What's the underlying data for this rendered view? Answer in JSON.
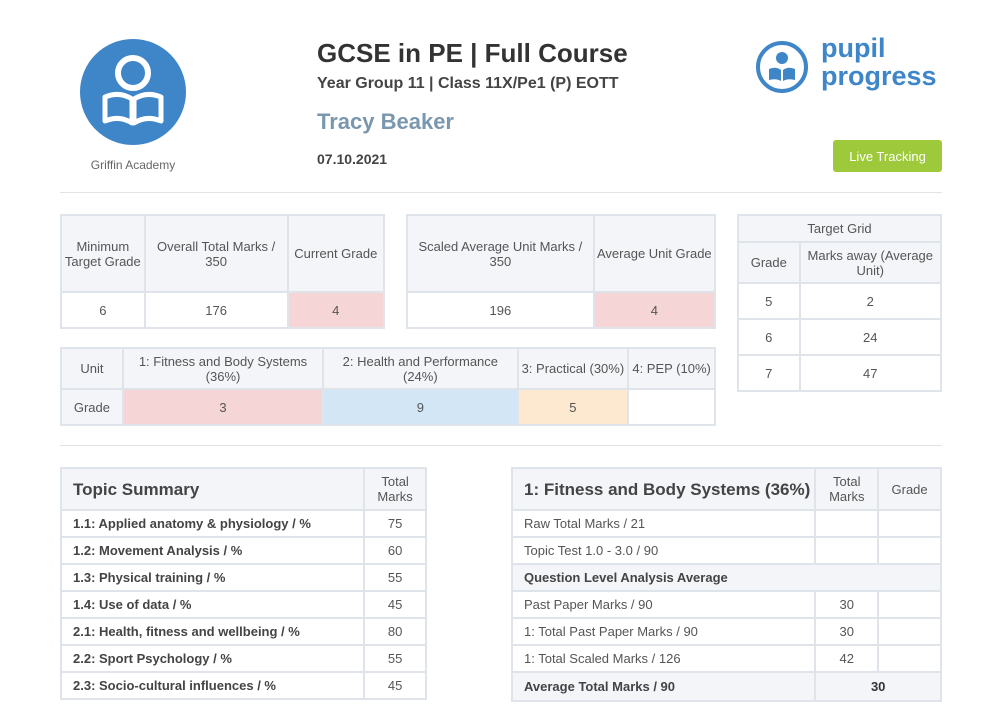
{
  "school": {
    "name": "Griffin Academy"
  },
  "header": {
    "title": "GCSE in PE | Full Course",
    "subtitle": "Year Group 11 | Class 11X/Pe1 (P) EOTT",
    "student": "Tracy Beaker",
    "date": "07.10.2021"
  },
  "brand": {
    "line1": "pupil",
    "line2": "progress"
  },
  "live_tracking": "Live Tracking",
  "summary1": {
    "headers": [
      "Minimum Target Grade",
      "Overall Total Marks / 350",
      "Current Grade"
    ],
    "values": [
      "6",
      "176",
      "4"
    ]
  },
  "summary2": {
    "headers": [
      "Scaled Average Unit Marks / 350",
      "Average Unit Grade"
    ],
    "values": [
      "196",
      "4"
    ]
  },
  "target_grid": {
    "title": "Target Grid",
    "headers": [
      "Grade",
      "Marks away (Average Unit)"
    ],
    "rows": [
      {
        "grade": "5",
        "marks": "2"
      },
      {
        "grade": "6",
        "marks": "24"
      },
      {
        "grade": "7",
        "marks": "47"
      }
    ]
  },
  "units": {
    "row_labels": [
      "Unit",
      "Grade"
    ],
    "items": [
      {
        "name": "1: Fitness and Body Systems (36%)",
        "grade": "3"
      },
      {
        "name": "2: Health and Performance (24%)",
        "grade": "9"
      },
      {
        "name": "3: Practical (30%)",
        "grade": "5"
      },
      {
        "name": "4: PEP (10%)",
        "grade": ""
      }
    ]
  },
  "topic_summary": {
    "title": "Topic Summary",
    "col": "Total Marks",
    "rows": [
      {
        "label": "1.1: Applied anatomy & physiology / %",
        "value": "75"
      },
      {
        "label": "1.2: Movement Analysis / %",
        "value": "60"
      },
      {
        "label": "1.3: Physical training / %",
        "value": "55"
      },
      {
        "label": "1.4: Use of data / %",
        "value": "45"
      },
      {
        "label": "2.1: Health, fitness and wellbeing / %",
        "value": "80"
      },
      {
        "label": "2.2: Sport Psychology / %",
        "value": "55"
      },
      {
        "label": "2.3: Socio-cultural influences / %",
        "value": "45"
      }
    ]
  },
  "fitness": {
    "title": "1: Fitness and Body Systems (36%)",
    "col_total": "Total Marks",
    "col_grade": "Grade",
    "raw_total": "Raw Total Marks / 21",
    "topic_test": "Topic Test 1.0 - 3.0 / 90",
    "qla": "Question Level Analysis Average",
    "rows": [
      {
        "label": "Past Paper Marks / 90",
        "value": "30"
      },
      {
        "label": "1: Total Past Paper Marks / 90",
        "value": "30"
      },
      {
        "label": "1: Total Scaled Marks / 126",
        "value": "42"
      }
    ],
    "avg_label": "Average Total Marks / 90",
    "avg_value": "30"
  }
}
